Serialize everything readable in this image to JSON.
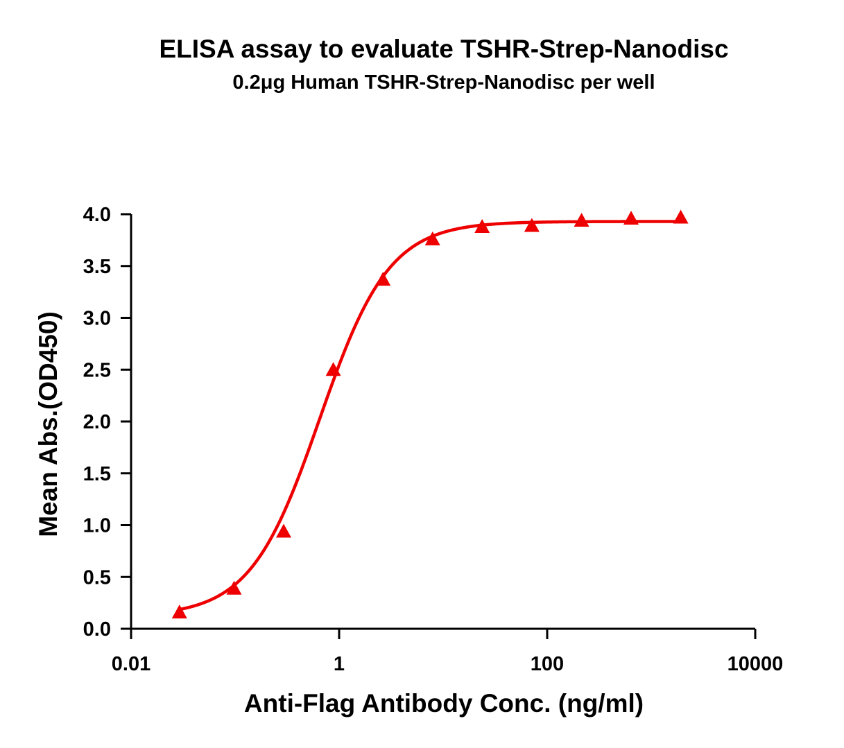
{
  "chart_data": {
    "type": "scatter",
    "title": "ELISA assay to evaluate TSHR-Strep-Nanodisc",
    "subtitle": "0.2μg Human TSHR-Strep-Nanodisc per well",
    "xlabel": "Anti-Flag Antibody Conc. (ng/ml)",
    "ylabel": "Mean Abs.(OD450)",
    "x_scale": "log",
    "xlim": [
      0.01,
      10000
    ],
    "ylim": [
      0,
      4
    ],
    "x_ticks": [
      {
        "value": 0.01,
        "label": "0.01"
      },
      {
        "value": 1,
        "label": "1"
      },
      {
        "value": 100,
        "label": "100"
      },
      {
        "value": 10000,
        "label": "10000"
      }
    ],
    "y_ticks": [
      {
        "value": 0.0,
        "label": "0.0"
      },
      {
        "value": 0.5,
        "label": "0.5"
      },
      {
        "value": 1.0,
        "label": "1.0"
      },
      {
        "value": 1.5,
        "label": "1.5"
      },
      {
        "value": 2.0,
        "label": "2.0"
      },
      {
        "value": 2.5,
        "label": "2.5"
      },
      {
        "value": 3.0,
        "label": "3.0"
      },
      {
        "value": 3.5,
        "label": "3.5"
      },
      {
        "value": 4.0,
        "label": "4.0"
      }
    ],
    "grid": false,
    "marker": "triangle",
    "color": "#ee0000",
    "series": [
      {
        "x": [
          0.0292,
          0.0977,
          0.293,
          0.879,
          2.64,
          7.91,
          23.7,
          71.2,
          214,
          641,
          1923
        ],
        "y": [
          0.16,
          0.39,
          0.94,
          2.5,
          3.37,
          3.76,
          3.88,
          3.89,
          3.94,
          3.96,
          3.97
        ]
      }
    ],
    "fit": {
      "model": "4PL",
      "bottom": 0.12,
      "top": 3.93,
      "ec50": 0.65,
      "hill": 1.3,
      "x_range": [
        0.0292,
        1923
      ]
    }
  }
}
